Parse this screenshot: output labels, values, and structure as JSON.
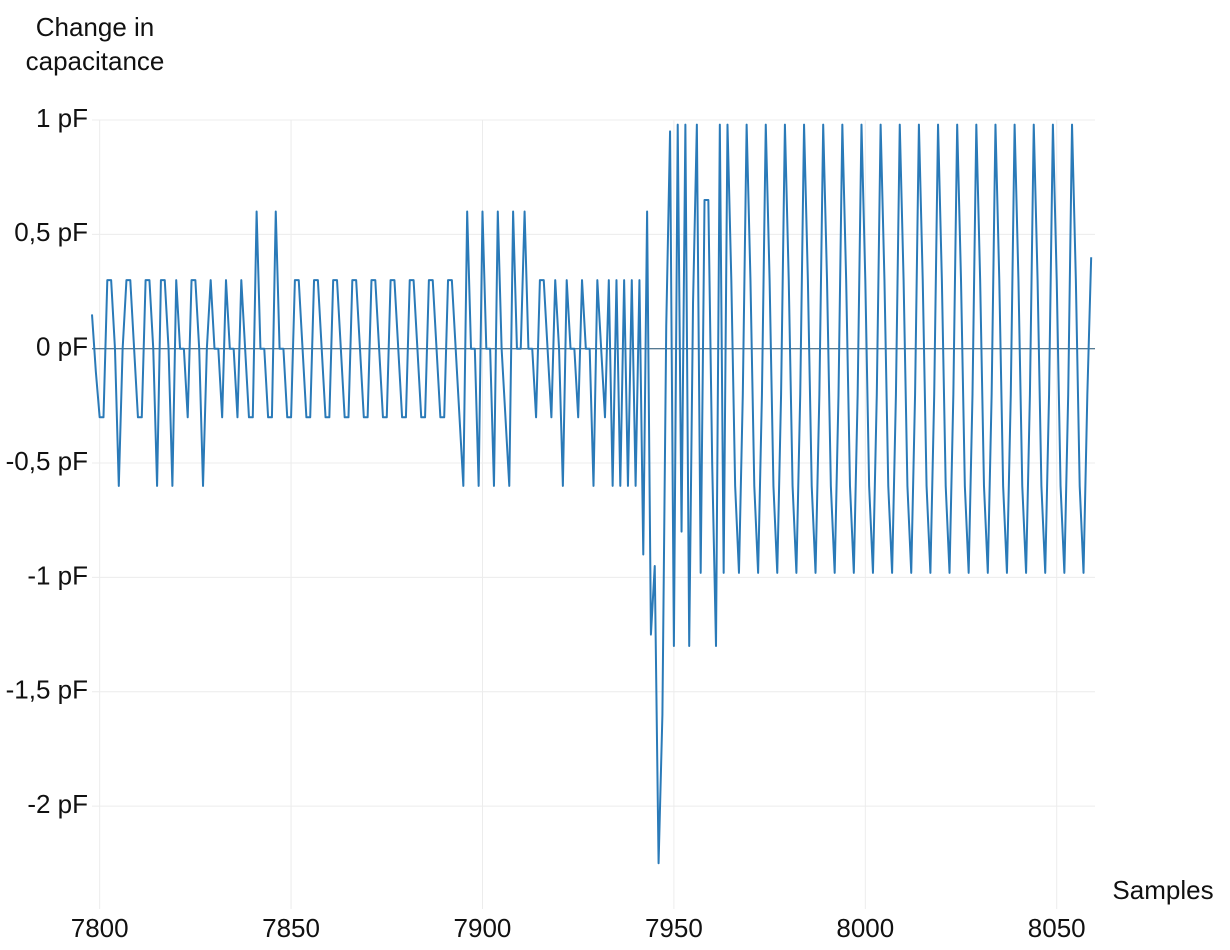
{
  "chart_data": {
    "type": "line",
    "y_label": "Change in capacitance",
    "x_label": "Samples",
    "color": "#2a7ab8",
    "grid": true,
    "xlim": [
      7798,
      8060
    ],
    "ylim": [
      -2.45,
      1
    ],
    "xticks": [
      7800,
      7850,
      7900,
      7950,
      8000,
      8050
    ],
    "yticks": [
      {
        "value": 1,
        "label": "1 pF"
      },
      {
        "value": 0.5,
        "label": "0,5 pF"
      },
      {
        "value": 0,
        "label": "0 pF"
      },
      {
        "value": -0.5,
        "label": "-0,5 pF"
      },
      {
        "value": -1,
        "label": "-1 pF"
      },
      {
        "value": -1.5,
        "label": "-1,5 pF"
      },
      {
        "value": -2,
        "label": "-2 pF"
      }
    ],
    "x": [
      7798,
      7799,
      7800,
      7801,
      7802,
      7803,
      7804,
      7805,
      7806,
      7807,
      7808,
      7809,
      7810,
      7811,
      7812,
      7813,
      7814,
      7815,
      7816,
      7817,
      7818,
      7819,
      7820,
      7821,
      7822,
      7823,
      7824,
      7825,
      7826,
      7827,
      7828,
      7829,
      7830,
      7831,
      7832,
      7833,
      7834,
      7835,
      7836,
      7837,
      7838,
      7839,
      7840,
      7841,
      7842,
      7843,
      7844,
      7845,
      7846,
      7847,
      7848,
      7849,
      7850,
      7851,
      7852,
      7853,
      7854,
      7855,
      7856,
      7857,
      7858,
      7859,
      7860,
      7861,
      7862,
      7863,
      7864,
      7865,
      7866,
      7867,
      7868,
      7869,
      7870,
      7871,
      7872,
      7873,
      7874,
      7875,
      7876,
      7877,
      7878,
      7879,
      7880,
      7881,
      7882,
      7883,
      7884,
      7885,
      7886,
      7887,
      7888,
      7889,
      7890,
      7891,
      7892,
      7893,
      7894,
      7895,
      7896,
      7897,
      7898,
      7899,
      7900,
      7901,
      7902,
      7903,
      7904,
      7905,
      7906,
      7907,
      7908,
      7909,
      7910,
      7911,
      7912,
      7913,
      7914,
      7915,
      7916,
      7917,
      7918,
      7919,
      7920,
      7921,
      7922,
      7923,
      7924,
      7925,
      7926,
      7927,
      7928,
      7929,
      7930,
      7931,
      7932,
      7933,
      7934,
      7935,
      7936,
      7937,
      7938,
      7939,
      7940,
      7941,
      7942,
      7943,
      7944,
      7945,
      7946,
      7947,
      7948,
      7949,
      7950,
      7951,
      7952,
      7953,
      7954,
      7955,
      7956,
      7957,
      7958,
      7959,
      7960,
      7961,
      7962,
      7963,
      7964,
      7965,
      7966,
      7967,
      7968,
      7969,
      7970,
      7971,
      7972,
      7973,
      7974,
      7975,
      7976,
      7977,
      7978,
      7979,
      7980,
      7981,
      7982,
      7983,
      7984,
      7985,
      7986,
      7987,
      7988,
      7989,
      7990,
      7991,
      7992,
      7993,
      7994,
      7995,
      7996,
      7997,
      7998,
      7999,
      8000,
      8001,
      8002,
      8003,
      8004,
      8005,
      8006,
      8007,
      8008,
      8009,
      8010,
      8011,
      8012,
      8013,
      8014,
      8015,
      8016,
      8017,
      8018,
      8019,
      8020,
      8021,
      8022,
      8023,
      8024,
      8025,
      8026,
      8027,
      8028,
      8029,
      8030,
      8031,
      8032,
      8033,
      8034,
      8035,
      8036,
      8037,
      8038,
      8039,
      8040,
      8041,
      8042,
      8043,
      8044,
      8045,
      8046,
      8047,
      8048,
      8049,
      8050,
      8051,
      8052,
      8053,
      8054,
      8055,
      8056,
      8057,
      8058,
      8059
    ],
    "values": [
      0.15,
      -0.1,
      -0.3,
      -0.3,
      0.3,
      0.3,
      0,
      -0.6,
      0,
      0.3,
      0.3,
      0,
      -0.3,
      -0.3,
      0.3,
      0.3,
      0,
      -0.6,
      0.3,
      0.3,
      0,
      -0.6,
      0.3,
      0,
      0,
      -0.3,
      0.3,
      0.3,
      0,
      -0.6,
      0,
      0.3,
      0,
      0,
      -0.3,
      0.3,
      0,
      0,
      -0.3,
      0.3,
      0,
      -0.3,
      -0.3,
      0.6,
      0,
      0,
      -0.3,
      -0.3,
      0.6,
      0,
      0,
      -0.3,
      -0.3,
      0.3,
      0.3,
      0,
      -0.3,
      -0.3,
      0.3,
      0.3,
      0,
      -0.3,
      -0.3,
      0.3,
      0.3,
      0,
      -0.3,
      -0.3,
      0.3,
      0.3,
      0,
      -0.3,
      -0.3,
      0.3,
      0.3,
      0,
      -0.3,
      -0.3,
      0.3,
      0.3,
      0,
      -0.3,
      -0.3,
      0.3,
      0.3,
      0,
      -0.3,
      -0.3,
      0.3,
      0.3,
      0,
      -0.3,
      -0.3,
      0.3,
      0.3,
      0,
      -0.3,
      -0.6,
      0.6,
      0,
      0,
      -0.6,
      0.6,
      0,
      0,
      -0.6,
      0.6,
      0,
      -0.3,
      -0.6,
      0.6,
      0,
      0,
      0.6,
      0,
      0,
      -0.3,
      0.3,
      0.3,
      0,
      -0.3,
      0.3,
      0,
      -0.6,
      0.3,
      0,
      0,
      -0.3,
      0.3,
      0,
      0,
      -0.6,
      0.3,
      0,
      -0.3,
      0.3,
      -0.6,
      0.3,
      -0.6,
      0.3,
      -0.6,
      0.3,
      -0.6,
      0.3,
      -0.9,
      0.6,
      -1.25,
      -0.95,
      -2.25,
      -1.6,
      0.1,
      0.95,
      -1.3,
      0.98,
      -0.8,
      0.98,
      -1.3,
      0.2,
      0.98,
      -0.98,
      0.65,
      0.65,
      -0.5,
      -1.3,
      0.98,
      -0.98,
      0.98,
      0.3,
      -0.6,
      -0.98,
      -0.2,
      0.98,
      0.3,
      -0.6,
      -0.98,
      -0.2,
      0.98,
      0.3,
      -0.6,
      -0.98,
      -0.2,
      0.98,
      0.3,
      -0.6,
      -0.98,
      -0.2,
      0.98,
      0.3,
      -0.6,
      -0.98,
      -0.2,
      0.98,
      0.3,
      -0.6,
      -0.98,
      -0.2,
      0.98,
      0.3,
      -0.6,
      -0.98,
      -0.2,
      0.98,
      0.3,
      -0.6,
      -0.98,
      -0.2,
      0.98,
      0.3,
      -0.6,
      -0.98,
      -0.2,
      0.98,
      0.3,
      -0.6,
      -0.98,
      -0.2,
      0.98,
      0.3,
      -0.6,
      -0.98,
      -0.2,
      0.98,
      0.3,
      -0.6,
      -0.98,
      -0.2,
      0.98,
      0.3,
      -0.6,
      -0.98,
      -0.2,
      0.98,
      0.3,
      -0.6,
      -0.98,
      -0.2,
      0.98,
      0.3,
      -0.6,
      -0.98,
      -0.2,
      0.98,
      0.3,
      -0.6,
      -0.98,
      -0.2,
      0.98,
      0.3,
      -0.6,
      -0.98,
      -0.2,
      0.98,
      0.3,
      -0.6,
      -0.98,
      -0.2,
      0.98,
      0.3,
      -0.6,
      -0.98,
      -0.2,
      0.4
    ]
  }
}
